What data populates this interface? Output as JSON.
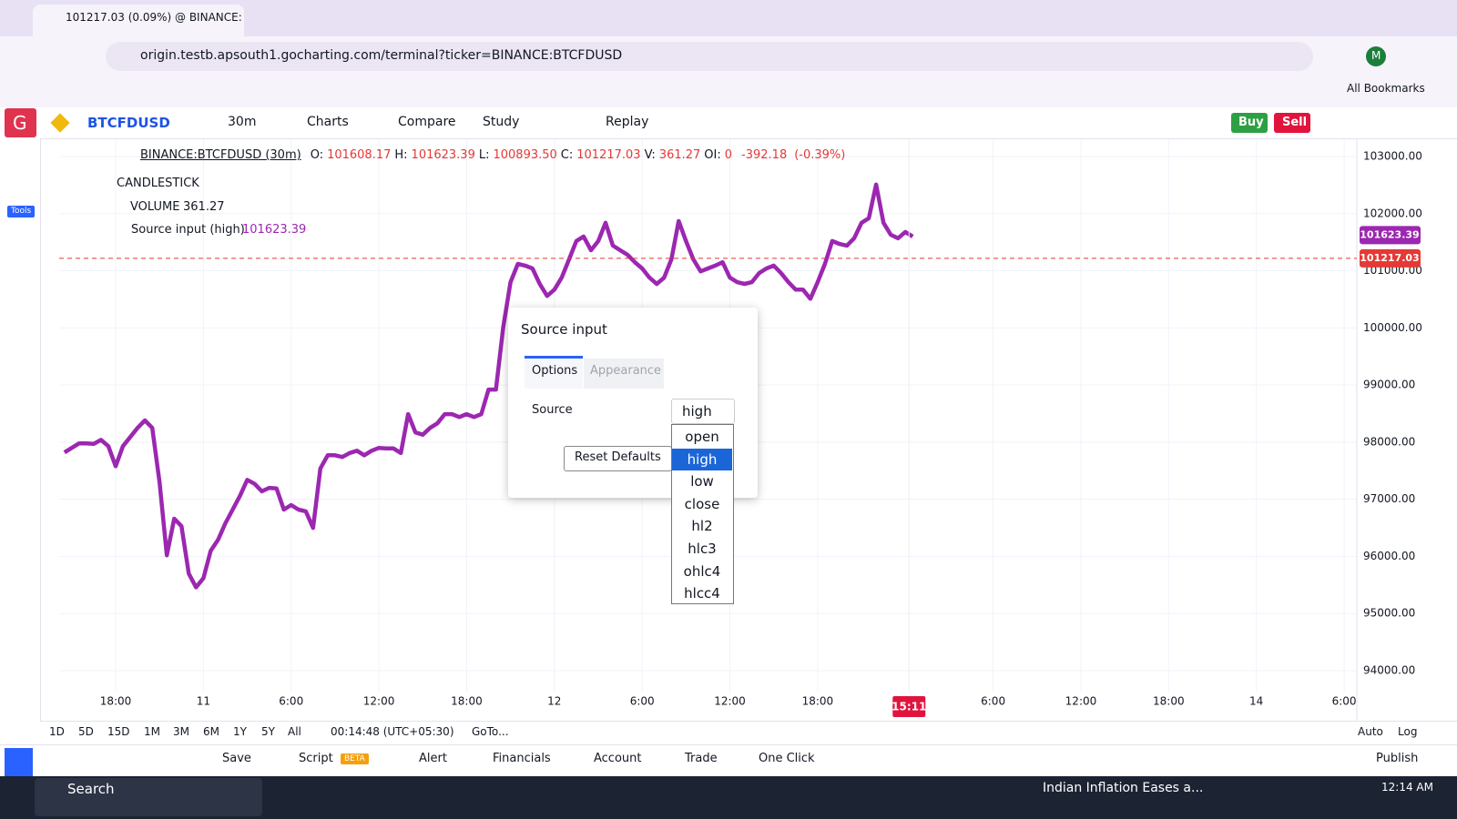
{
  "browser": {
    "tab_title": "101217.03 (0.09%) @ BINANCE:",
    "url": "origin.testb.apsouth1.gocharting.com/terminal?ticker=BINANCE:BTCFDUSD",
    "bookmarks": "All Bookmarks",
    "avatar": "M"
  },
  "app_toolbar": {
    "logo": "G",
    "symbol": "BTCFDUSD",
    "interval": "30m",
    "items": [
      "Charts",
      "Compare",
      "Study",
      "Replay"
    ],
    "buy": "Buy",
    "sell": "Sell",
    "tools": "Tools"
  },
  "legend": {
    "symbol": "BINANCE:BTCFDUSD (30m)",
    "fields": [
      [
        "O:",
        "101608.17"
      ],
      [
        "H:",
        "101623.39"
      ],
      [
        "L:",
        "100893.50"
      ],
      [
        "C:",
        "101217.03"
      ],
      [
        "V:",
        "361.27"
      ],
      [
        "OI:",
        "0"
      ]
    ],
    "change": "-392.18",
    "change_pct": "(-0.39%)",
    "indicators": [
      {
        "name": "CANDLESTICK"
      },
      {
        "name": "VOLUME",
        "value": "361.27"
      },
      {
        "name": "Source input (high)",
        "value": "101623.39"
      }
    ]
  },
  "dialog": {
    "title": "Source input",
    "tabs": [
      "Options",
      "Appearance"
    ],
    "field_label": "Source",
    "selected": "high",
    "options": [
      "open",
      "high",
      "low",
      "close",
      "hl2",
      "hlc3",
      "ohlc4",
      "hlcc4"
    ],
    "reset": "Reset Defaults"
  },
  "chart_data": {
    "type": "line",
    "series": [
      {
        "name": "Source input (high)",
        "color": "#9c27b0",
        "values": [
          97820,
          97900,
          97980,
          97980,
          97970,
          98040,
          97930,
          97580,
          97930,
          98090,
          98250,
          98380,
          98250,
          97300,
          96020,
          96660,
          96530,
          95700,
          95460,
          95620,
          96100,
          96290,
          96580,
          96820,
          97060,
          97340,
          97270,
          97140,
          97200,
          97190,
          96820,
          96900,
          96820,
          96790,
          96500,
          97540,
          97770,
          97770,
          97740,
          97810,
          97850,
          97770,
          97850,
          97900,
          97890,
          97890,
          97810,
          98490,
          98170,
          98130,
          98250,
          98330,
          98490,
          98490,
          98440,
          98490,
          98440,
          98490,
          98920,
          98920,
          100010,
          100800,
          101120,
          101090,
          101040,
          100770,
          100560,
          100670,
          100880,
          101200,
          101520,
          101600,
          101360,
          101520,
          101840,
          101440,
          101360,
          101280,
          101150,
          101040,
          100880,
          100770,
          100880,
          101200,
          101870,
          101520,
          101200,
          100990,
          101040,
          101090,
          101150,
          100880,
          100800,
          100770,
          100800,
          100960,
          101040,
          101090,
          100960,
          100800,
          100670,
          100670,
          100510,
          100800,
          101120,
          101520,
          101470,
          101440,
          101570,
          101840,
          101920,
          102510,
          101840,
          101630,
          101570,
          101680,
          101600
        ]
      }
    ],
    "ylim": [
      93400,
      103300
    ],
    "yticks": [
      {
        "value": 103000,
        "label": "103000.00"
      },
      {
        "value": 102000,
        "label": "102000.00"
      },
      {
        "value": 101000,
        "label": "101000.00"
      },
      {
        "value": 100000,
        "label": "100000.00"
      },
      {
        "value": 99000,
        "label": "99000.00"
      },
      {
        "value": 98000,
        "label": "98000.00"
      },
      {
        "value": 97000,
        "label": "97000.00"
      },
      {
        "value": 96000,
        "label": "96000.00"
      },
      {
        "value": 95000,
        "label": "95000.00"
      },
      {
        "value": 94000,
        "label": "94000.00"
      }
    ],
    "xlim": [
      -0.6,
      176.9
    ],
    "xticks": [
      {
        "value": 7,
        "label": "18:00"
      },
      {
        "value": 19,
        "label": "11"
      },
      {
        "value": 31,
        "label": "6:00"
      },
      {
        "value": 43,
        "label": "12:00"
      },
      {
        "value": 55,
        "label": "18:00"
      },
      {
        "value": 67,
        "label": "12"
      },
      {
        "value": 79,
        "label": "6:00"
      },
      {
        "value": 91,
        "label": "12:00"
      },
      {
        "value": 103,
        "label": "18:00"
      },
      {
        "value": 127,
        "label": "6:00"
      },
      {
        "value": 139,
        "label": "12:00"
      },
      {
        "value": 151,
        "label": "18:00"
      },
      {
        "value": 163,
        "label": "14"
      },
      {
        "value": 175,
        "label": "6:00"
      }
    ],
    "crosshair_time": {
      "value": 115.5,
      "label": "15:11"
    },
    "price_tags": [
      {
        "value": 101623.39,
        "label": "101623.39",
        "color": "#9c27b0"
      },
      {
        "value": 101217.03,
        "label": "101217.03",
        "color": "#e53935"
      }
    ],
    "grid": true
  },
  "range_bar": {
    "ranges": [
      "1D",
      "5D",
      "15D",
      "1M",
      "3M",
      "6M",
      "1Y",
      "5Y",
      "All"
    ],
    "time": "00:14:48 (UTC+05:30)",
    "goto": "GoTo...",
    "auto": "Auto",
    "log": "Log"
  },
  "bottom_bar": {
    "save": "Save",
    "script": "Script",
    "beta": "BETA",
    "alert": "Alert",
    "financials": "Financials",
    "account": "Account",
    "trade": "Trade",
    "one_click": "One Click",
    "publish": "Publish"
  },
  "taskbar": {
    "search": "Search",
    "news": "Indian Inflation Eases a...",
    "time": "12:14 AM"
  }
}
